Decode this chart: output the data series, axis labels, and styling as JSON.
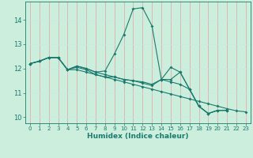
{
  "title": "",
  "xlabel": "Humidex (Indice chaleur)",
  "bg_color": "#cceedd",
  "line_color": "#1a7a6e",
  "grid_color_v": "#e8a0a0",
  "grid_color_h": "#c8e8e8",
  "xlim": [
    -0.5,
    23.5
  ],
  "ylim": [
    9.75,
    14.75
  ],
  "xticks": [
    0,
    1,
    2,
    3,
    4,
    5,
    6,
    7,
    8,
    9,
    10,
    11,
    12,
    13,
    14,
    15,
    16,
    17,
    18,
    19,
    20,
    21,
    22,
    23
  ],
  "yticks": [
    10,
    11,
    12,
    13,
    14
  ],
  "line1_x": [
    0,
    1,
    2,
    3,
    4,
    5,
    6,
    7,
    8,
    9,
    10,
    11,
    12,
    13,
    14,
    15,
    16,
    17,
    18,
    19,
    20,
    21
  ],
  "line1_y": [
    12.2,
    12.3,
    12.45,
    12.45,
    11.95,
    12.1,
    12.0,
    11.85,
    11.9,
    12.6,
    13.4,
    14.45,
    14.5,
    13.75,
    11.55,
    12.05,
    11.85,
    11.15,
    10.45,
    10.15,
    10.28,
    10.28
  ],
  "line2_x": [
    0,
    1,
    2,
    3,
    4,
    5,
    6,
    7,
    8,
    9,
    10,
    11,
    12,
    13,
    14,
    15,
    16,
    17,
    18,
    19,
    20,
    21
  ],
  "line2_y": [
    12.2,
    12.3,
    12.45,
    12.45,
    11.95,
    12.05,
    11.95,
    11.75,
    11.65,
    11.65,
    11.55,
    11.5,
    11.45,
    11.35,
    11.55,
    11.45,
    11.35,
    11.15,
    10.45,
    10.15,
    10.28,
    10.28
  ],
  "line3_x": [
    0,
    1,
    2,
    3,
    4,
    5,
    6,
    7,
    8,
    9,
    10,
    11,
    12,
    13,
    14,
    15,
    16,
    17,
    18,
    19,
    20,
    21,
    22,
    23
  ],
  "line3_y": [
    12.2,
    12.3,
    12.45,
    12.45,
    11.95,
    11.95,
    11.85,
    11.75,
    11.65,
    11.55,
    11.45,
    11.35,
    11.25,
    11.15,
    11.05,
    10.95,
    10.85,
    10.75,
    10.65,
    10.55,
    10.45,
    10.35,
    10.26,
    10.22
  ],
  "line4_x": [
    0,
    1,
    2,
    3,
    4,
    5,
    6,
    7,
    8,
    9,
    10,
    11,
    12,
    13,
    14,
    15,
    16,
    17,
    18,
    19,
    20,
    21
  ],
  "line4_y": [
    12.2,
    12.3,
    12.45,
    12.45,
    11.95,
    12.1,
    12.0,
    11.85,
    11.75,
    11.65,
    11.55,
    11.5,
    11.4,
    11.3,
    11.55,
    11.55,
    11.85,
    11.15,
    10.45,
    10.15,
    10.28,
    10.28
  ]
}
